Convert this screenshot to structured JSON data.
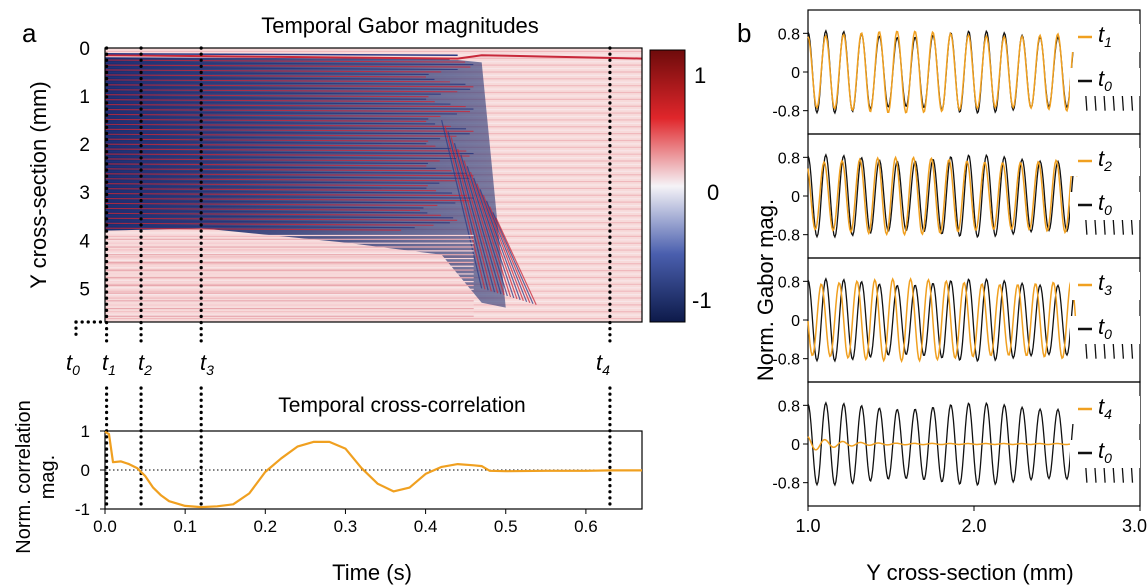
{
  "panel_labels": {
    "a": "a",
    "b": "b"
  },
  "colors": {
    "t_series": "#f0a020",
    "t0_series": "#111111",
    "corr_line": "#f0a020",
    "cmap_low": "#0d1a4a",
    "cmap_mid": "#f3f3f6",
    "cmap_high": "#7a0a0a"
  },
  "time_markers": [
    {
      "main": "t",
      "sub": "0"
    },
    {
      "main": "t",
      "sub": "1"
    },
    {
      "main": "t",
      "sub": "2"
    },
    {
      "main": "t",
      "sub": "3"
    },
    {
      "main": "t",
      "sub": "4"
    }
  ],
  "chart_data": [
    {
      "type": "heatmap",
      "title": "Temporal Gabor magnitudes",
      "ylabel": "Y cross-section (mm)",
      "yticks": [
        "0",
        "1",
        "2",
        "3",
        "4",
        "5"
      ],
      "ylim": [
        0,
        5.7
      ],
      "xlim": [
        0,
        0.67
      ],
      "marker_times": [
        0.002,
        0.045,
        0.12,
        0.63
      ],
      "colorbar": {
        "ticks": [
          "1",
          "0",
          "-1"
        ],
        "range": [
          -1,
          1
        ]
      },
      "features": {
        "stripe_band_mm": [
          0.2,
          3.8
        ],
        "collapse_time_s": [
          0.44,
          0.52
        ],
        "top_line_mm": 0.2
      }
    },
    {
      "type": "line",
      "title": "Temporal cross-correlation",
      "xlabel": "Time (s)",
      "ylabel": "Norm. correlation mag.",
      "xlim": [
        0,
        0.67
      ],
      "ylim": [
        -1,
        1
      ],
      "xticks": [
        "0.0",
        "0.1",
        "0.2",
        "0.3",
        "0.4",
        "0.5",
        "0.6"
      ],
      "yticks": [
        "1",
        "0",
        "-1"
      ],
      "marker_times": [
        0.002,
        0.045,
        0.12,
        0.63
      ],
      "x": [
        0.0,
        0.005,
        0.01,
        0.02,
        0.03,
        0.04,
        0.05,
        0.06,
        0.07,
        0.08,
        0.1,
        0.12,
        0.14,
        0.16,
        0.18,
        0.2,
        0.22,
        0.24,
        0.26,
        0.28,
        0.3,
        0.32,
        0.34,
        0.36,
        0.38,
        0.4,
        0.42,
        0.44,
        0.46,
        0.47,
        0.48,
        0.5,
        0.55,
        0.6,
        0.63,
        0.67
      ],
      "values": [
        0.98,
        0.92,
        0.2,
        0.22,
        0.15,
        0.05,
        -0.15,
        -0.45,
        -0.65,
        -0.8,
        -0.92,
        -0.95,
        -0.93,
        -0.88,
        -0.6,
        -0.05,
        0.3,
        0.6,
        0.72,
        0.72,
        0.55,
        0.05,
        -0.35,
        -0.55,
        -0.45,
        -0.1,
        0.08,
        0.15,
        0.12,
        0.1,
        -0.02,
        -0.03,
        -0.02,
        -0.02,
        -0.01,
        -0.01
      ]
    },
    {
      "type": "line",
      "xlabel": "Y cross-section (mm)",
      "ylabel": "Norm. Gabor  mag.",
      "xlim": [
        1.0,
        3.0
      ],
      "xticks": [
        "1.0",
        "2.0",
        "3.0"
      ],
      "yticks": [
        "0.8",
        "0",
        "-0.8"
      ],
      "panels": [
        {
          "legend": [
            {
              "main": "t",
              "sub": "1"
            },
            {
              "main": "t",
              "sub": "0"
            }
          ],
          "t_amplitude": 0.85,
          "t_phase_shift": 0.05,
          "t_envelope": "full"
        },
        {
          "legend": [
            {
              "main": "t",
              "sub": "2"
            },
            {
              "main": "t",
              "sub": "0"
            }
          ],
          "t_amplitude": 0.8,
          "t_phase_shift": 0.6,
          "t_envelope": "full"
        },
        {
          "legend": [
            {
              "main": "t",
              "sub": "3"
            },
            {
              "main": "t",
              "sub": "0"
            }
          ],
          "t_amplitude": 0.85,
          "t_phase_shift": 1.6,
          "t_envelope": "full"
        },
        {
          "legend": [
            {
              "main": "t",
              "sub": "4"
            },
            {
              "main": "t",
              "sub": "0"
            }
          ],
          "t_amplitude": 0.12,
          "t_phase_shift": 0.3,
          "t_envelope": "decay"
        }
      ],
      "signal": {
        "cycles_per_mm": 9.3,
        "t0_amplitude": 0.85,
        "end_mm": 2.62
      }
    }
  ]
}
